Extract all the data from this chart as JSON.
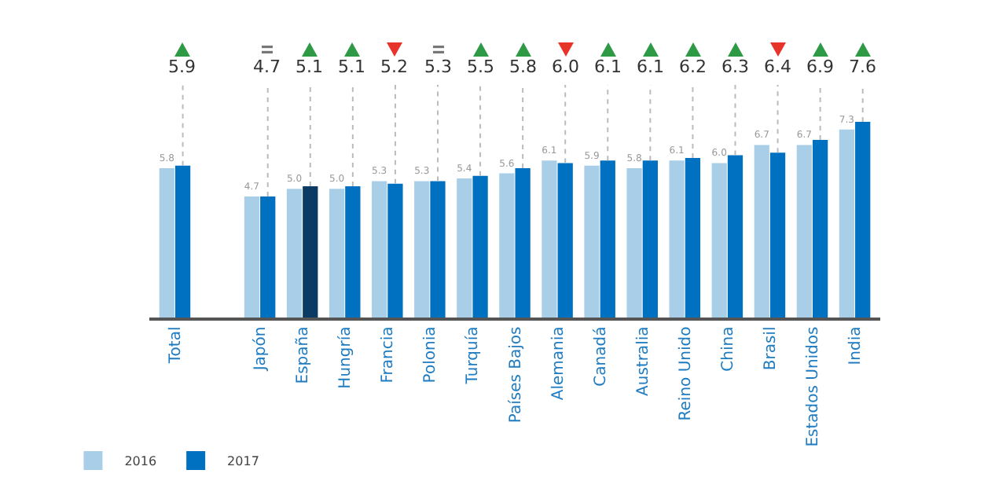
{
  "chart_data": {
    "type": "bar",
    "categories": [
      "Total",
      null,
      "Japón",
      "España",
      "Hungría",
      "Francia",
      "Polonia",
      "Turquía",
      "Países Bajos",
      "Alemania",
      "Canadá",
      "Australia",
      "Reino Unido",
      "China",
      "Brasil",
      "Estados Unidos",
      "India"
    ],
    "series": [
      {
        "name": "2016",
        "color": "#a9cfe8",
        "values": [
          5.8,
          null,
          4.7,
          5.0,
          5.0,
          5.3,
          5.3,
          5.4,
          5.6,
          6.1,
          5.9,
          5.8,
          6.1,
          6.0,
          6.7,
          6.7,
          7.3
        ],
        "value_labels": [
          "5.8",
          null,
          "4.7",
          "5.0",
          "5.0",
          "5.3",
          "5.3",
          "5.4",
          "5.6",
          "6.1",
          "5.9",
          "5.8",
          "6.1",
          "6.0",
          "6.7",
          "6.7",
          "7.3"
        ]
      },
      {
        "name": "2017",
        "color": "#0070c0",
        "colors": [
          "#0070c0",
          null,
          "#0070c0",
          "#0b3a63",
          "#0070c0",
          "#0070c0",
          "#0070c0",
          "#0070c0",
          "#0070c0",
          "#0070c0",
          "#0070c0",
          "#0070c0",
          "#0070c0",
          "#0070c0",
          "#0070c0",
          "#0070c0",
          "#0070c0"
        ],
        "values": [
          5.9,
          null,
          4.7,
          5.1,
          5.1,
          5.2,
          5.3,
          5.5,
          5.8,
          6.0,
          6.1,
          6.1,
          6.2,
          6.3,
          6.4,
          6.9,
          7.6
        ],
        "value_labels": [
          "5.9",
          null,
          "4.7",
          "5.1",
          "5.1",
          "5.2",
          "5.3",
          "5.5",
          "5.8",
          "6.0",
          "6.1",
          "6.1",
          "6.2",
          "6.3",
          "6.4",
          "6.9",
          "7.6"
        ]
      }
    ],
    "legend": "bottom left"
  }
}
